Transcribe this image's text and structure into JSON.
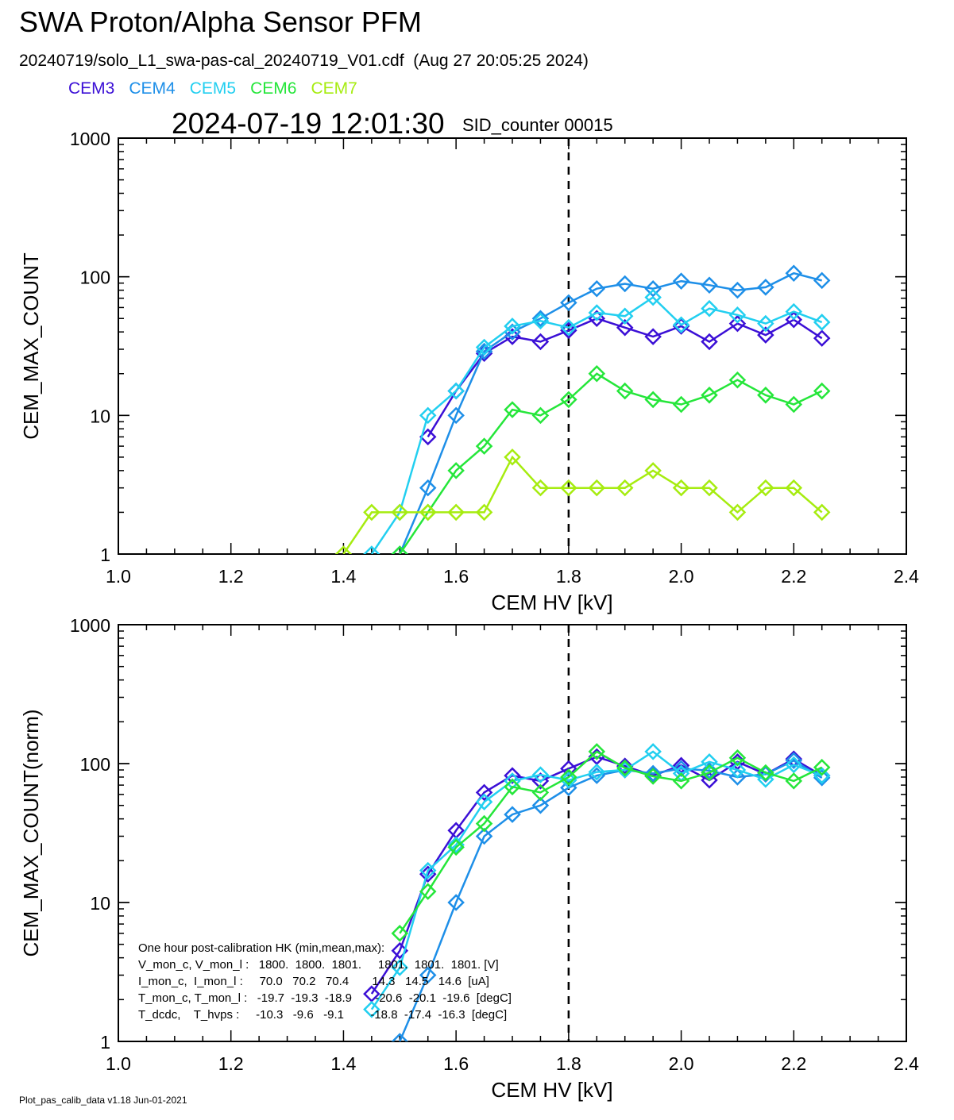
{
  "header": {
    "title": "SWA Proton/Alpha Sensor PFM",
    "subtitle": "20240719/solo_L1_swa-pas-cal_20240719_V01.cdf  (Aug 27 20:05:25 2024)",
    "timestamp": "2024-07-19 12:01:30",
    "sid_counter": "SID_counter 00015"
  },
  "footer": "Plot_pas_calib_data v1.18 Jun-01-2021",
  "hk_box": {
    "lines": [
      "One hour post-calibration HK (min,mean,max):",
      "V_mon_c, V_mon_l :   1800.  1800.  1801.     1801.  1801.  1801. [V]",
      "I_mon_c,  I_mon_l :     70.0   70.2   70.4       14.3   14.5   14.6  [uA]",
      "T_mon_c, T_mon_l :   -19.7  -19.3  -18.9       -20.6  -20.1  -19.6  [degC]",
      "T_dcdc,    T_hvps :     -10.3   -9.6   -9.1        -18.8  -17.4  -16.3  [degC]"
    ]
  },
  "colors": {
    "CEM3": "#3b0fd6",
    "CEM4": "#1e8fe8",
    "CEM5": "#22cff0",
    "CEM6": "#25e63a",
    "CEM7": "#a6ec10"
  },
  "chart_data": [
    {
      "type": "line",
      "xlabel": "CEM HV [kV]",
      "ylabel": "CEM_MAX_COUNT",
      "xlim": [
        1.0,
        2.4
      ],
      "ylim": [
        1,
        1000
      ],
      "yscale": "log",
      "xticks": [
        "1.0",
        "1.2",
        "1.4",
        "1.6",
        "1.8",
        "2.0",
        "2.2",
        "2.4"
      ],
      "yticks": [
        "1",
        "10",
        "100",
        "1000"
      ],
      "vline": 1.8,
      "markers": "diamond",
      "series": [
        {
          "name": "CEM3",
          "x": [
            1.55,
            1.6,
            1.65,
            1.7,
            1.75,
            1.8,
            1.85,
            1.9,
            1.95,
            2.0,
            2.05,
            2.1,
            2.15,
            2.2,
            2.25
          ],
          "values": [
            7,
            15,
            28,
            37,
            34,
            41,
            50,
            43,
            37,
            44,
            34,
            46,
            38,
            49,
            36
          ]
        },
        {
          "name": "CEM4",
          "x": [
            1.5,
            1.55,
            1.6,
            1.65,
            1.7,
            1.75,
            1.8,
            1.85,
            1.9,
            1.95,
            2.0,
            2.05,
            2.1,
            2.15,
            2.2,
            2.25
          ],
          "values": [
            1,
            3,
            10,
            29,
            40,
            50,
            65,
            82,
            89,
            82,
            93,
            87,
            80,
            84,
            106,
            94
          ]
        },
        {
          "name": "CEM5",
          "x": [
            1.45,
            1.5,
            1.55,
            1.6,
            1.65,
            1.7,
            1.75,
            1.8,
            1.85,
            1.9,
            1.95,
            2.0,
            2.05,
            2.1,
            2.15,
            2.2,
            2.25
          ],
          "values": [
            1,
            2,
            10,
            15,
            31,
            44,
            48,
            43,
            55,
            52,
            71,
            45,
            59,
            53,
            46,
            56,
            47
          ]
        },
        {
          "name": "CEM6",
          "x": [
            1.5,
            1.55,
            1.6,
            1.65,
            1.7,
            1.75,
            1.8,
            1.85,
            1.9,
            1.95,
            2.0,
            2.05,
            2.1,
            2.15,
            2.2,
            2.25
          ],
          "values": [
            1,
            2,
            4,
            6,
            11,
            10,
            13,
            20,
            15,
            13,
            12,
            14,
            18,
            14,
            12,
            15
          ]
        },
        {
          "name": "CEM7",
          "x": [
            1.4,
            1.45,
            1.5,
            1.55,
            1.6,
            1.65,
            1.7,
            1.75,
            1.8,
            1.85,
            1.9,
            1.95,
            2.0,
            2.05,
            2.1,
            2.15,
            2.2,
            2.25
          ],
          "values": [
            1,
            2,
            2,
            2,
            2,
            2,
            5,
            3,
            3,
            3,
            3,
            4,
            3,
            3,
            2,
            3,
            3,
            2
          ]
        }
      ]
    },
    {
      "type": "line",
      "xlabel": "CEM HV [kV]",
      "ylabel": "CEM_MAX_COUNT(norm)",
      "xlim": [
        1.0,
        2.4
      ],
      "ylim": [
        1,
        1000
      ],
      "yscale": "log",
      "xticks": [
        "1.0",
        "1.2",
        "1.4",
        "1.6",
        "1.8",
        "2.0",
        "2.2",
        "2.4"
      ],
      "yticks": [
        "1",
        "10",
        "100",
        "1000"
      ],
      "vline": 1.8,
      "markers": "diamond",
      "series": [
        {
          "name": "CEM3",
          "x": [
            1.45,
            1.5,
            1.55,
            1.6,
            1.65,
            1.7,
            1.75,
            1.8,
            1.85,
            1.9,
            1.95,
            2.0,
            2.05,
            2.1,
            2.15,
            2.2,
            2.25
          ],
          "values": [
            2.2,
            4.5,
            16,
            33,
            62,
            82,
            75,
            92,
            112,
            96,
            82,
            97,
            76,
            103,
            84,
            108,
            82
          ]
        },
        {
          "name": "CEM4",
          "x": [
            1.5,
            1.55,
            1.6,
            1.65,
            1.7,
            1.75,
            1.8,
            1.85,
            1.9,
            1.95,
            2.0,
            2.05,
            2.1,
            2.15,
            2.2,
            2.25
          ],
          "values": [
            1,
            3,
            10,
            30,
            43,
            50,
            67,
            82,
            90,
            85,
            92,
            89,
            80,
            84,
            105,
            79
          ]
        },
        {
          "name": "CEM5",
          "x": [
            1.45,
            1.5,
            1.55,
            1.6,
            1.65,
            1.7,
            1.75,
            1.8,
            1.85,
            1.9,
            1.95,
            2.0,
            2.05,
            2.1,
            2.15,
            2.2,
            2.25
          ],
          "values": [
            1.7,
            3.4,
            17,
            26,
            53,
            75,
            83,
            76,
            87,
            90,
            122,
            85,
            103,
            90,
            77,
            98,
            82
          ]
        },
        {
          "name": "CEM6",
          "x": [
            1.5,
            1.55,
            1.6,
            1.65,
            1.7,
            1.75,
            1.8,
            1.85,
            1.9,
            1.95,
            2.0,
            2.05,
            2.1,
            2.15,
            2.2,
            2.25
          ],
          "values": [
            6,
            12,
            25,
            37,
            68,
            62,
            80,
            122,
            93,
            81,
            75,
            86,
            110,
            86,
            75,
            94
          ]
        }
      ]
    }
  ]
}
